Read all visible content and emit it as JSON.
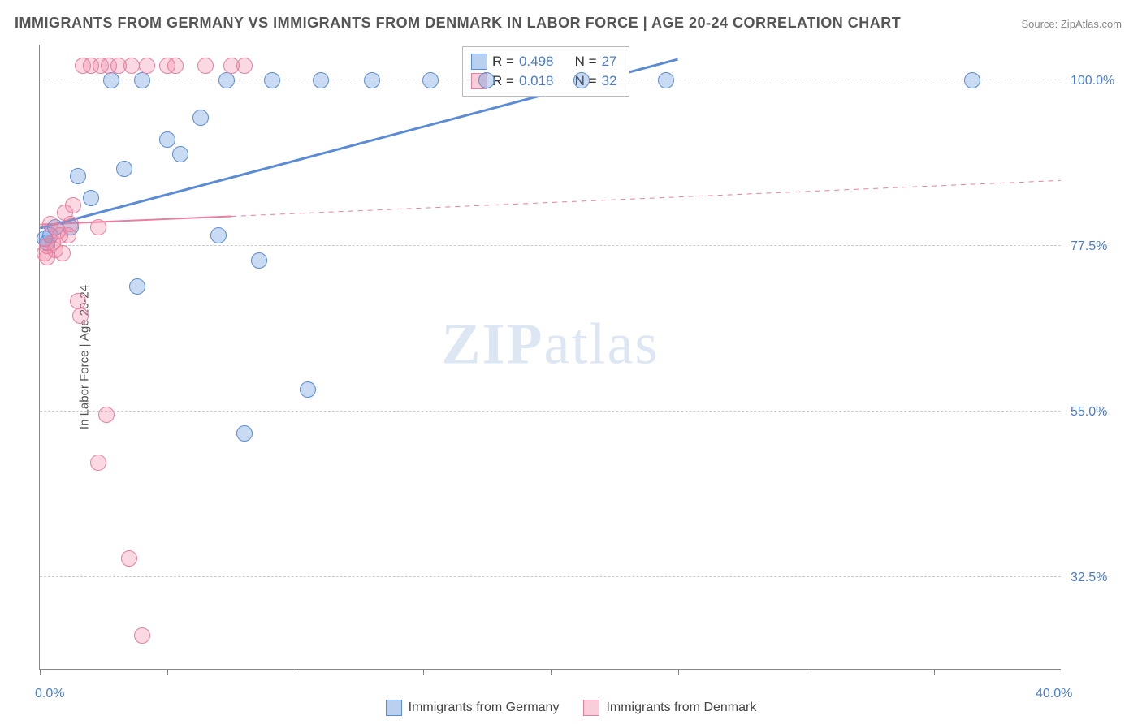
{
  "title": "IMMIGRANTS FROM GERMANY VS IMMIGRANTS FROM DENMARK IN LABOR FORCE | AGE 20-24 CORRELATION CHART",
  "source": "Source: ZipAtlas.com",
  "watermark_a": "ZIP",
  "watermark_b": "atlas",
  "chart": {
    "type": "scatter",
    "xlim": [
      0,
      40
    ],
    "ylim": [
      20,
      105
    ],
    "ylabel": "In Labor Force | Age 20-24",
    "background_color": "#ffffff",
    "grid_color": "#cccccc",
    "yticks": [
      {
        "v": 32.5,
        "label": "32.5%"
      },
      {
        "v": 55.0,
        "label": "55.0%"
      },
      {
        "v": 77.5,
        "label": "77.5%"
      },
      {
        "v": 100.0,
        "label": "100.0%"
      }
    ],
    "xtick_positions": [
      0,
      5,
      10,
      15,
      20,
      25,
      30,
      35,
      40
    ],
    "xticks": [
      {
        "v": 0,
        "label": "0.0%"
      },
      {
        "v": 40,
        "label": "40.0%"
      }
    ],
    "series": [
      {
        "name": "Immigrants from Germany",
        "color": "#5b8bd4",
        "fill": "rgba(100,150,220,0.35)",
        "cls": "blue",
        "r_label": "R =",
        "r_value": "0.498",
        "n_label": "N =",
        "n_value": "27",
        "trend": {
          "x1": 0,
          "y1": 80,
          "x2": 25,
          "y2": 103,
          "dash": false,
          "width": 3
        },
        "points": [
          [
            0.2,
            78.5
          ],
          [
            0.3,
            78
          ],
          [
            0.4,
            79
          ],
          [
            0.6,
            80
          ],
          [
            1.2,
            80
          ],
          [
            1.5,
            87
          ],
          [
            2.0,
            84
          ],
          [
            2.8,
            100
          ],
          [
            3.3,
            88
          ],
          [
            3.8,
            72
          ],
          [
            4.0,
            100
          ],
          [
            5.0,
            92
          ],
          [
            5.5,
            90
          ],
          [
            6.3,
            95
          ],
          [
            7.0,
            79
          ],
          [
            7.3,
            100
          ],
          [
            8.0,
            52
          ],
          [
            8.6,
            75.5
          ],
          [
            9.1,
            100
          ],
          [
            10.5,
            58
          ],
          [
            11.0,
            100
          ],
          [
            13.0,
            100
          ],
          [
            15.3,
            100
          ],
          [
            17.5,
            100
          ],
          [
            21.2,
            100
          ],
          [
            24.5,
            100
          ],
          [
            36.5,
            100
          ]
        ]
      },
      {
        "name": "Immigrants from Denmark",
        "color": "#e87fa0",
        "fill": "rgba(240,130,160,0.30)",
        "cls": "pink",
        "r_label": "R =",
        "r_value": "0.018",
        "n_label": "N =",
        "n_value": "32",
        "trend": {
          "x1": 0,
          "y1": 80.5,
          "x2": 40,
          "y2": 86.5,
          "dash": true,
          "solid_to": 7.5,
          "width": 2
        },
        "points": [
          [
            0.2,
            76.5
          ],
          [
            0.3,
            77.5
          ],
          [
            0.3,
            76
          ],
          [
            0.4,
            80.5
          ],
          [
            0.5,
            78
          ],
          [
            0.6,
            77
          ],
          [
            0.7,
            79.5
          ],
          [
            0.8,
            79
          ],
          [
            0.9,
            76.5
          ],
          [
            1.0,
            82
          ],
          [
            1.1,
            79
          ],
          [
            1.2,
            80.5
          ],
          [
            1.3,
            83
          ],
          [
            1.5,
            70
          ],
          [
            1.6,
            68
          ],
          [
            1.7,
            102
          ],
          [
            2.0,
            102
          ],
          [
            2.3,
            80
          ],
          [
            2.3,
            48
          ],
          [
            2.4,
            102
          ],
          [
            2.6,
            54.5
          ],
          [
            2.7,
            102
          ],
          [
            3.1,
            102
          ],
          [
            3.5,
            35
          ],
          [
            3.6,
            102
          ],
          [
            4.0,
            24.5
          ],
          [
            4.2,
            102
          ],
          [
            5.0,
            102
          ],
          [
            5.3,
            102
          ],
          [
            6.5,
            102
          ],
          [
            7.5,
            102
          ],
          [
            8.0,
            102
          ]
        ]
      }
    ]
  },
  "bottom_legend": [
    {
      "cls": "blue",
      "label": "Immigrants from Germany"
    },
    {
      "cls": "pink",
      "label": "Immigrants from Denmark"
    }
  ]
}
